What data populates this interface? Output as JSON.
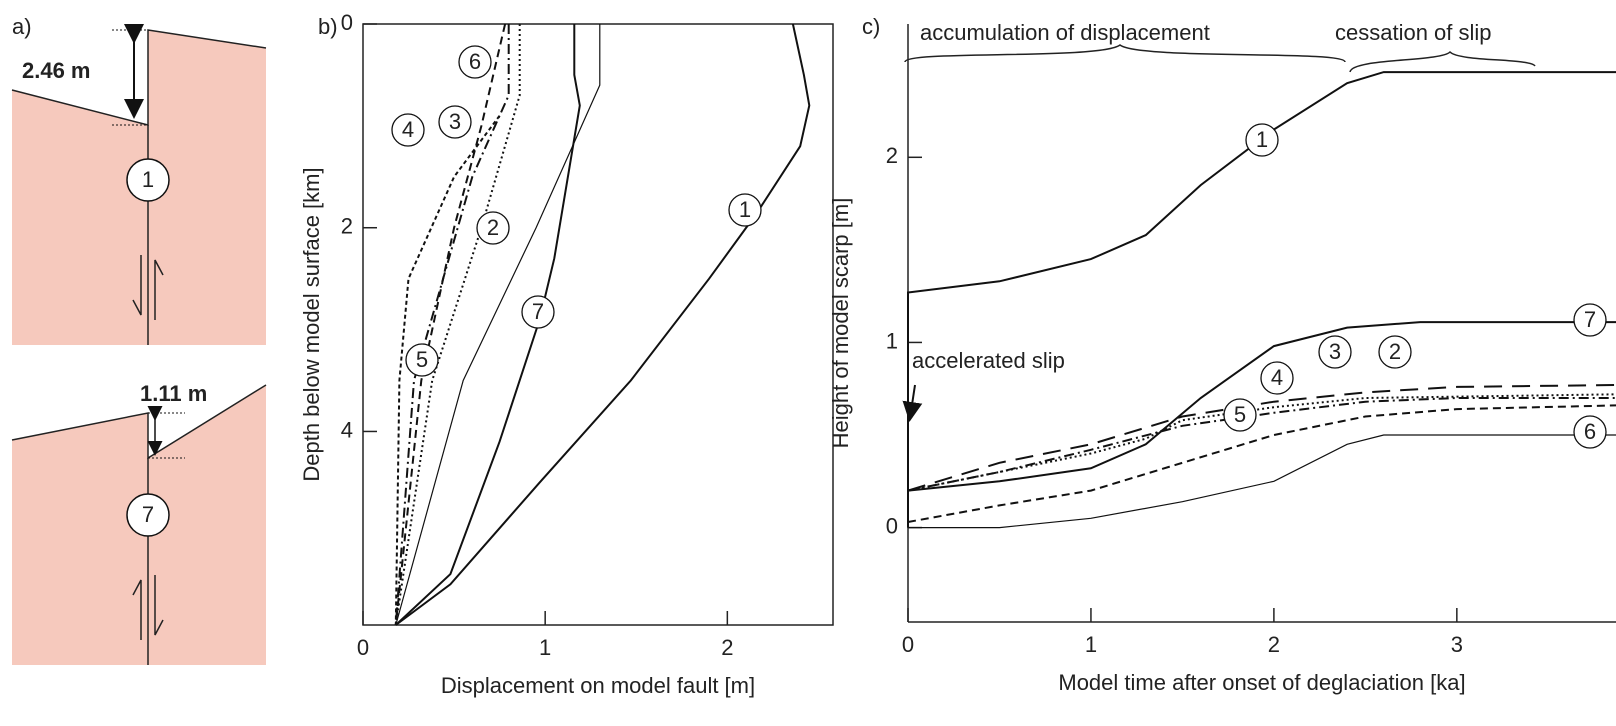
{
  "diagram": {
    "panel_label": "a)",
    "upper": {
      "offset": "2.46 m",
      "fault": "1"
    },
    "lower": {
      "offset": "1.11 m",
      "fault": "7"
    }
  },
  "chart_data": [
    {
      "type": "line",
      "panel_label": "b)",
      "x_label": "Displacement on model fault [m]",
      "y_label": "Depth below model surface [km]",
      "xlim": [
        0,
        2.58
      ],
      "ylim": [
        0,
        5.9
      ],
      "y_inverted": true,
      "xticks": [
        0,
        1,
        2
      ],
      "yticks": [
        0,
        2,
        4
      ],
      "series": [
        {
          "name": "1",
          "color": "#111",
          "style": "solid",
          "x": [
            2.36,
            2.42,
            2.45,
            2.4,
            2.16,
            1.9,
            1.47,
            0.97,
            0.48,
            0.18
          ],
          "y": [
            0,
            0.5,
            0.8,
            1.2,
            1.86,
            2.5,
            3.5,
            4.5,
            5.5,
            5.9
          ]
        },
        {
          "name": "2",
          "color": "#111",
          "style": "dotted",
          "x": [
            0.86,
            0.86,
            0.65,
            0.38,
            0.18
          ],
          "y": [
            0,
            0.7,
            2,
            3.5,
            5.9
          ]
        },
        {
          "name": "3",
          "color": "#111",
          "style": "dashdot",
          "x": [
            0.8,
            0.8,
            0.6,
            0.28,
            0.18
          ],
          "y": [
            0,
            0.7,
            1.5,
            3.5,
            5.9
          ]
        },
        {
          "name": "4",
          "color": "#111",
          "style": "shortdash",
          "x": [
            0.75,
            0.5,
            0.25,
            0.2,
            0.18
          ],
          "y": [
            0.9,
            1.5,
            2.5,
            3.5,
            5.9
          ]
        },
        {
          "name": "5",
          "color": "#111",
          "style": "dashed",
          "x": [
            0.78,
            0.65,
            0.5,
            0.32,
            0.18
          ],
          "y": [
            0,
            1,
            2,
            3.5,
            5.9
          ]
        },
        {
          "name": "6",
          "color": "#111",
          "style": "thin",
          "x": [
            1.3,
            1.3,
            1.2,
            0.95,
            0.55,
            0.18
          ],
          "y": [
            0,
            0.6,
            1,
            2,
            3.5,
            5.9
          ]
        },
        {
          "name": "7",
          "color": "#111",
          "style": "solid",
          "x": [
            1.16,
            1.16,
            1.19,
            1.05,
            0.97,
            0.75,
            0.48,
            0.18
          ],
          "y": [
            0,
            0.5,
            0.8,
            2.3,
            2.9,
            4.1,
            5.4,
            5.9
          ]
        }
      ]
    },
    {
      "type": "line",
      "panel_label": "c)",
      "x_label": "Model time after onset of deglaciation [ka]",
      "y_label": "Height of model scarp [m]",
      "xlim": [
        0,
        3.87
      ],
      "ylim": [
        -0.51,
        2.72
      ],
      "xticks": [
        0,
        1,
        2,
        3
      ],
      "yticks": [
        0,
        1,
        2
      ],
      "annotations": [
        "accumulation of displacement",
        "cessation of slip",
        "accelerated slip"
      ],
      "series": [
        {
          "name": "1",
          "color": "#111",
          "style": "solid",
          "x": [
            0,
            0,
            0.5,
            1,
            1.3,
            1.6,
            2,
            2.4,
            2.6,
            3.87
          ],
          "y": [
            0,
            1.27,
            1.33,
            1.45,
            1.58,
            1.85,
            2.15,
            2.4,
            2.46,
            2.46
          ]
        },
        {
          "name": "2",
          "color": "#111",
          "style": "longdash",
          "x": [
            0,
            0.5,
            1,
            1.5,
            2,
            2.5,
            3,
            3.87
          ],
          "y": [
            0.2,
            0.35,
            0.45,
            0.6,
            0.68,
            0.73,
            0.76,
            0.77
          ]
        },
        {
          "name": "3",
          "color": "#111",
          "style": "dotted",
          "x": [
            0,
            0.5,
            1,
            1.3,
            1.5,
            2,
            2.5,
            3.87
          ],
          "y": [
            0.2,
            0.3,
            0.4,
            0.48,
            0.58,
            0.65,
            0.7,
            0.72
          ]
        },
        {
          "name": "4",
          "color": "#111",
          "style": "dashdot",
          "x": [
            0,
            0.5,
            1,
            1.5,
            2,
            2.5,
            3,
            3.87
          ],
          "y": [
            0.2,
            0.3,
            0.42,
            0.55,
            0.62,
            0.68,
            0.7,
            0.7
          ]
        },
        {
          "name": "5",
          "color": "#111",
          "style": "dashed",
          "x": [
            0,
            0.5,
            1,
            1.5,
            2,
            2.5,
            3,
            3.87
          ],
          "y": [
            0.03,
            0.12,
            0.2,
            0.35,
            0.5,
            0.6,
            0.64,
            0.66
          ]
        },
        {
          "name": "6",
          "color": "#111",
          "style": "thin",
          "x": [
            0,
            0.5,
            1,
            1.5,
            2,
            2.4,
            2.6,
            3.87
          ],
          "y": [
            0,
            0,
            0.05,
            0.14,
            0.25,
            0.45,
            0.5,
            0.5
          ]
        },
        {
          "name": "7",
          "color": "#111",
          "style": "solid",
          "x": [
            0,
            0.5,
            1,
            1.3,
            1.6,
            2,
            2.4,
            2.8,
            3.87
          ],
          "y": [
            0.2,
            0.25,
            0.32,
            0.45,
            0.7,
            0.98,
            1.08,
            1.11,
            1.11
          ]
        }
      ]
    }
  ]
}
